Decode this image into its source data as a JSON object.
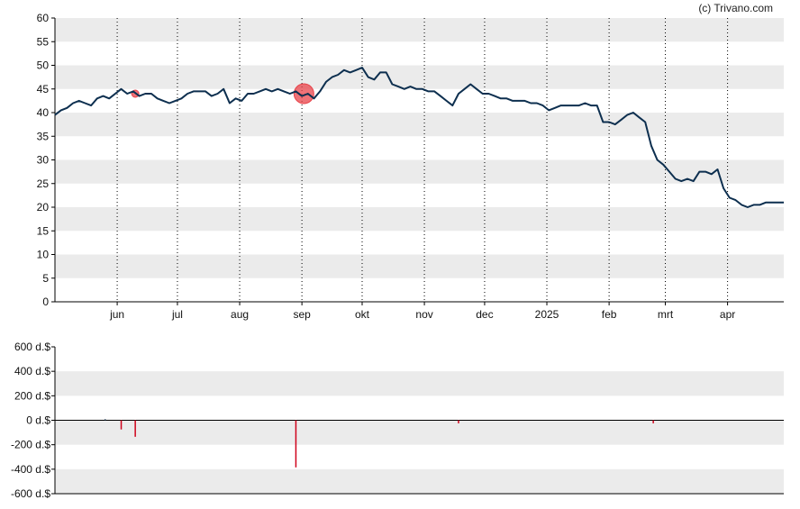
{
  "credit": "(c) Trivano.com",
  "colors": {
    "band": "#ebebeb",
    "line": "#0d2f4f",
    "bubble": "#e8434a",
    "bar": "#d0021b",
    "grid": "#000000"
  },
  "chart_data": [
    {
      "type": "line",
      "title": "",
      "ylim": [
        0,
        60
      ],
      "y_ticks": [
        0,
        5,
        10,
        15,
        20,
        25,
        30,
        35,
        40,
        45,
        50,
        55,
        60
      ],
      "x_months": [
        "jun",
        "jul",
        "aug",
        "sep",
        "okt",
        "nov",
        "dec",
        "2025",
        "feb",
        "mrt",
        "apr"
      ],
      "x_month_positions_days": [
        31,
        61,
        92,
        123,
        153,
        184,
        214,
        245,
        276,
        304,
        335
      ],
      "x_range_days": [
        0,
        363
      ],
      "grid": "horizontal bands + vertical dotted month lines",
      "series": [
        {
          "x": [
            0,
            3,
            6,
            9,
            12,
            15,
            18,
            21,
            24,
            27,
            30,
            33,
            36,
            39,
            42,
            45,
            48,
            51,
            54,
            57,
            60,
            63,
            66,
            69,
            72,
            75,
            78,
            81,
            84,
            87,
            90,
            93,
            96,
            99,
            102,
            105,
            108,
            111,
            114,
            117,
            120,
            123,
            126,
            129,
            132,
            135,
            138,
            141,
            144,
            147,
            150,
            153,
            156,
            159,
            162,
            165,
            168,
            171,
            174,
            177,
            180,
            183,
            186,
            189,
            192,
            195,
            198,
            201,
            204,
            207,
            210,
            213,
            216,
            219,
            222,
            225,
            228,
            231,
            234,
            237,
            240,
            243,
            246,
            249,
            252,
            255,
            258,
            261,
            264,
            267,
            270,
            273,
            276,
            279,
            282,
            285,
            288,
            291,
            294,
            297,
            300,
            303,
            306,
            309,
            312,
            315,
            318,
            321,
            324,
            327,
            330,
            333,
            336,
            339,
            342,
            345,
            348,
            351,
            354,
            357,
            360,
            363
          ],
          "values": [
            39.5,
            40.5,
            41.0,
            42.0,
            42.5,
            42.0,
            41.5,
            43.0,
            43.5,
            43.0,
            44.0,
            45.0,
            44.0,
            44.5,
            43.5,
            44.0,
            44.0,
            43.0,
            42.5,
            42.0,
            42.5,
            43.0,
            44.0,
            44.5,
            44.5,
            44.5,
            43.5,
            44.0,
            45.0,
            42.0,
            43.0,
            42.5,
            44.0,
            44.0,
            44.5,
            45.0,
            44.5,
            45.0,
            44.5,
            44.0,
            44.5,
            43.5,
            44.0,
            43.0,
            44.5,
            46.5,
            47.5,
            48.0,
            49.0,
            48.5,
            49.0,
            49.5,
            47.5,
            47.0,
            48.5,
            48.5,
            46.0,
            45.5,
            45.0,
            45.5,
            45.0,
            45.0,
            44.5,
            44.5,
            43.5,
            42.5,
            41.5,
            44.0,
            45.0,
            46.0,
            45.0,
            44.0,
            44.0,
            43.5,
            43.0,
            43.0,
            42.5,
            42.5,
            42.5,
            42.0,
            42.0,
            41.5,
            40.5,
            41.0,
            41.5,
            41.5,
            41.5,
            41.5,
            42.0,
            41.5,
            41.5,
            38.0,
            38.0,
            37.5,
            38.5,
            39.5,
            40.0,
            39.0,
            38.0,
            33.0,
            30.0,
            29.0,
            27.5,
            26.0,
            25.5,
            26.0,
            25.5,
            27.5,
            27.5,
            27.0,
            28.0,
            24.0,
            22.0,
            21.5,
            20.5,
            20.0,
            20.5,
            20.5,
            21.0,
            21.0,
            21.0,
            21.0
          ]
        }
      ],
      "bubbles": [
        {
          "x": 40,
          "y": 44.0,
          "size": "small"
        },
        {
          "x": 124,
          "y": 44.0,
          "size": "large"
        }
      ]
    },
    {
      "type": "bar",
      "ylim": [
        -600,
        600
      ],
      "y_ticks": [
        600,
        400,
        200,
        0,
        -200,
        -400,
        -600
      ],
      "y_tick_labels": [
        "600 d.$",
        "400 d.$",
        "200 d.$",
        "0 d.$",
        "-200 d.$",
        "-400 d.$",
        "-600 d.$"
      ],
      "series": [
        {
          "x": [
            25,
            33,
            40,
            120,
            201,
            298
          ],
          "values": [
            8,
            -75,
            -135,
            -385,
            -25,
            -25
          ]
        }
      ]
    }
  ]
}
